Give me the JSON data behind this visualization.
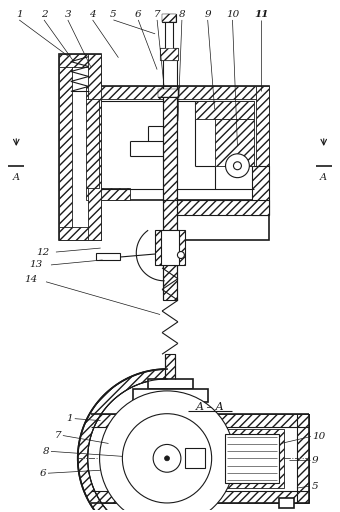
{
  "bg_color": "#ffffff",
  "lc": "#1a1a1a",
  "top_labels": [
    "1",
    "2",
    "3",
    "4",
    "5",
    "6",
    "7",
    "8",
    "9",
    "10",
    "11"
  ],
  "side_labels": [
    "12",
    "13",
    "14"
  ],
  "bot_labels": [
    "1",
    "7",
    "8",
    "6",
    "10",
    "9",
    "5"
  ],
  "section_label": "A – A",
  "cut_label": "A"
}
